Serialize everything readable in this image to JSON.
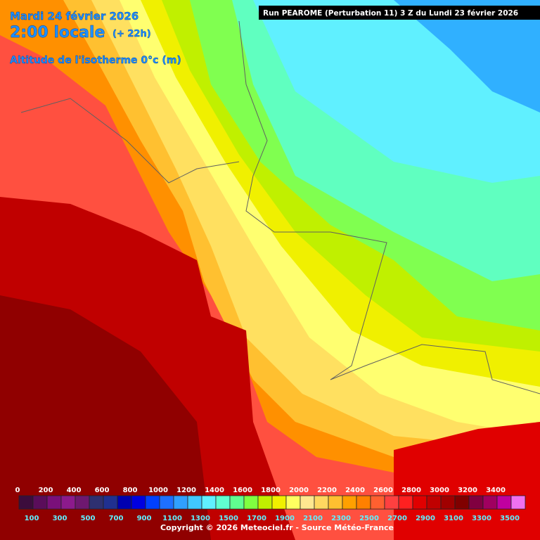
{
  "header": {
    "date": "Mardi 24 février 2026",
    "time": "2:00 locale",
    "offset": "(+ 22h)",
    "field": "Altitude de l'isotherme 0°c (m)",
    "run": "Run PEAROME (Perturbation 11) 3 Z du Lundi 23 février 2026"
  },
  "legend": {
    "top_labels": [
      0,
      200,
      400,
      600,
      800,
      1000,
      1200,
      1400,
      1600,
      1800,
      2000,
      2200,
      2400,
      2600,
      2800,
      3000,
      3200,
      3400
    ],
    "bottom_labels": [
      100,
      300,
      500,
      700,
      900,
      1100,
      1300,
      1500,
      1700,
      1900,
      2100,
      2300,
      2500,
      2700,
      2900,
      3100,
      3300,
      3500
    ],
    "colors": [
      "#3c0c3c",
      "#5a0d5a",
      "#7a107a",
      "#8c1a8c",
      "#6e1870",
      "#2e3070",
      "#203090",
      "#0000b0",
      "#0000e0",
      "#0040ff",
      "#1e70ff",
      "#30a0ff",
      "#40c8ff",
      "#60f0ff",
      "#60ffd0",
      "#60ff90",
      "#80ff40",
      "#c0f000",
      "#f0f000",
      "#ffff60",
      "#ffe890",
      "#ffd860",
      "#ffc030",
      "#ffa000",
      "#ff8000",
      "#ff6030",
      "#ff4040",
      "#ff2020",
      "#e00000",
      "#c00000",
      "#a00000",
      "#800000",
      "#800040",
      "#a00060",
      "#c000a0",
      "#f070f0"
    ]
  },
  "footer": {
    "copyright": "Copyright © 2026 Meteociel.fr - Source Météo-France"
  }
}
